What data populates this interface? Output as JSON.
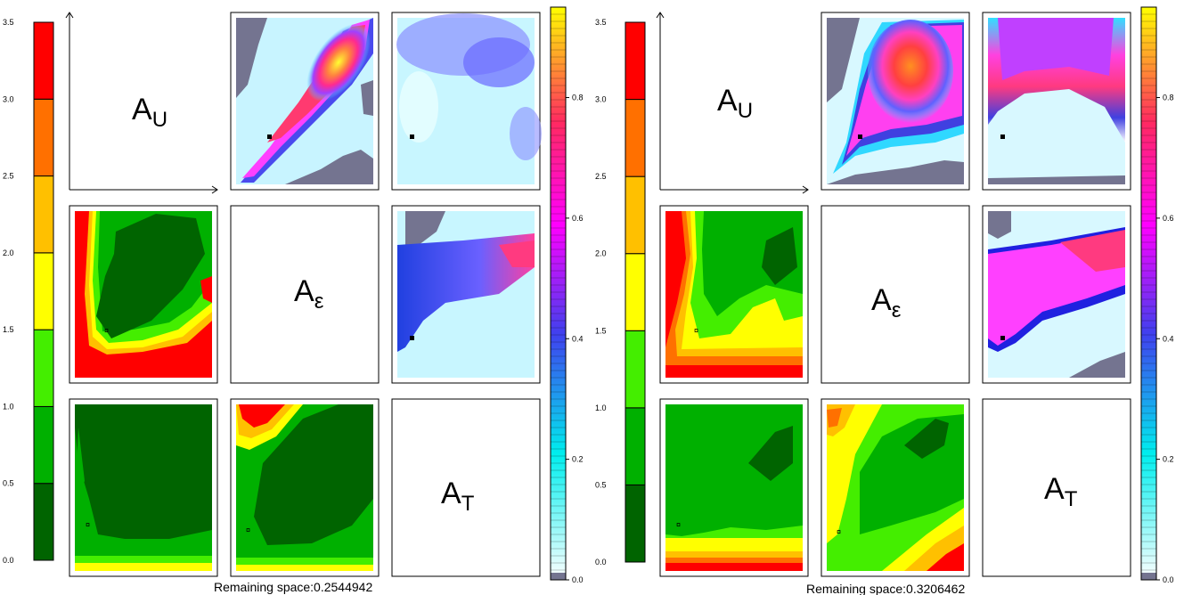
{
  "figures": [
    {
      "footer": "Remaining space:0.2544942",
      "diag_labels": [
        {
          "main": "A",
          "sub": "U"
        },
        {
          "main": "A",
          "sub": "ε"
        },
        {
          "main": "A",
          "sub": "T"
        }
      ]
    },
    {
      "footer": "Remaining space:0.3206462",
      "diag_labels": [
        {
          "main": "A",
          "sub": "U"
        },
        {
          "main": "A",
          "sub": "ε"
        },
        {
          "main": "A",
          "sub": "T"
        }
      ]
    }
  ],
  "colors": {
    "left_scale": [
      "#006400",
      "#00b000",
      "#44ee00",
      "#ffff00",
      "#ffc000",
      "#ff7000",
      "#ff0000"
    ],
    "gray": "#747490",
    "right_scale_stops": [
      "#ffffff",
      "#00eeee",
      "#4040ee",
      "#ff00ff",
      "#ff2a60",
      "#ffff00"
    ]
  },
  "chart_data": [
    {
      "type": "heatmap",
      "name": "left-discrete-colorbar",
      "ticks": [
        "0.0",
        "0.5",
        "1.0",
        "1.5",
        "2.0",
        "2.5",
        "3.0",
        "3.5"
      ],
      "ylim": [
        0,
        3.5
      ],
      "bands": [
        {
          "from": 0.0,
          "to": 0.5,
          "color": "#006400"
        },
        {
          "from": 0.5,
          "to": 1.0,
          "color": "#00b000"
        },
        {
          "from": 1.0,
          "to": 1.5,
          "color": "#44ee00"
        },
        {
          "from": 1.5,
          "to": 2.0,
          "color": "#ffff00"
        },
        {
          "from": 2.0,
          "to": 2.5,
          "color": "#ffc000"
        },
        {
          "from": 2.5,
          "to": 3.0,
          "color": "#ff7000"
        },
        {
          "from": 3.0,
          "to": 3.5,
          "color": "#ff0000"
        }
      ]
    },
    {
      "type": "heatmap",
      "name": "right-continuous-colorbar",
      "ticks": [
        "0.0",
        "0.2",
        "0.4",
        "0.6",
        "0.8"
      ],
      "ylim": [
        0,
        0.95
      ]
    }
  ]
}
